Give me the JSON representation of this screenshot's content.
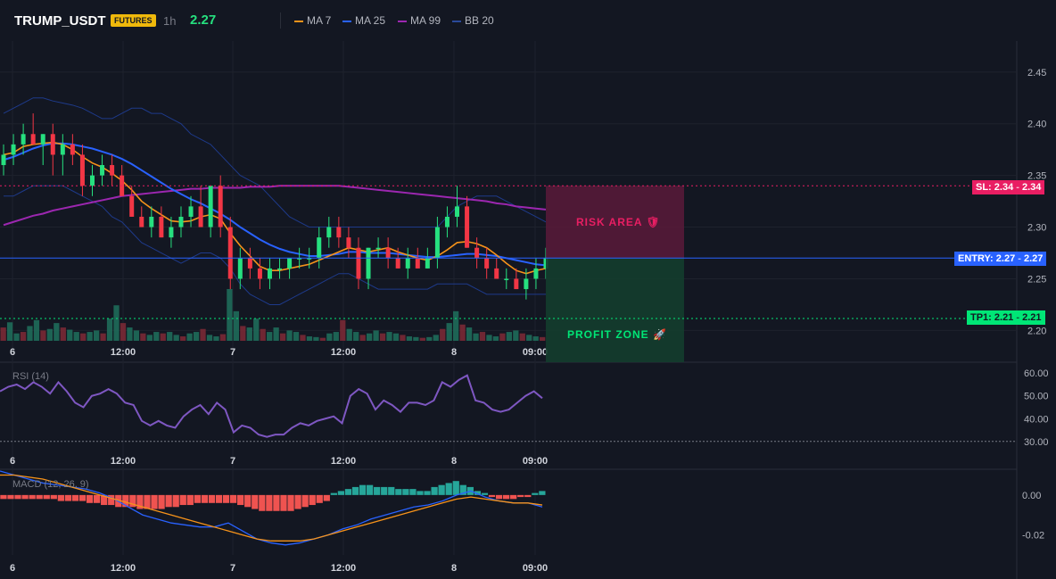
{
  "header": {
    "symbol": "TRUMP_USDT",
    "badge": "FUTURES",
    "timeframe": "1h",
    "last_price": "2.27",
    "legend": [
      {
        "label": "MA 7",
        "color": "#f7931a"
      },
      {
        "label": "MA 25",
        "color": "#2962ff"
      },
      {
        "label": "MA 99",
        "color": "#9c27b0"
      },
      {
        "label": "BB 20",
        "color": "#1e3a8a"
      }
    ]
  },
  "overlays": {
    "risk_area_label": "RISK AREA 🛡",
    "profit_zone_label": "PROFIT ZONE 🚀",
    "sl_label": "SL: 2.34",
    "sl_value": "2.34",
    "entry_label": "ENTRY: 2.27",
    "entry_value": "2.27",
    "tp_label": "TP1: 2.21",
    "tp_value": "2.21"
  },
  "colors": {
    "up": "#26e07f",
    "down": "#f23645",
    "bg": "#131722",
    "grid": "#1e222d",
    "sl": "#e91e63",
    "entry": "#2962ff",
    "tp": "#00e676"
  },
  "time_axis": [
    "6",
    "12:00",
    "7",
    "12:00",
    "8",
    "09:00"
  ],
  "chart_data": [
    {
      "type": "candlestick",
      "name": "price",
      "y_ticks": [
        "2.45",
        "2.40",
        "2.35",
        "2.30",
        "2.25",
        "2.20"
      ],
      "ylim": [
        2.19,
        2.48
      ],
      "candles": [
        [
          2.36,
          2.38,
          2.35,
          2.37
        ],
        [
          2.37,
          2.39,
          2.36,
          2.38
        ],
        [
          2.38,
          2.4,
          2.37,
          2.39
        ],
        [
          2.39,
          2.41,
          2.38,
          2.38
        ],
        [
          2.38,
          2.39,
          2.36,
          2.39
        ],
        [
          2.39,
          2.4,
          2.35,
          2.37
        ],
        [
          2.37,
          2.39,
          2.35,
          2.38
        ],
        [
          2.38,
          2.39,
          2.36,
          2.37
        ],
        [
          2.37,
          2.38,
          2.33,
          2.34
        ],
        [
          2.34,
          2.36,
          2.33,
          2.35
        ],
        [
          2.35,
          2.37,
          2.34,
          2.36
        ],
        [
          2.36,
          2.37,
          2.34,
          2.35
        ],
        [
          2.35,
          2.36,
          2.33,
          2.33
        ],
        [
          2.33,
          2.34,
          2.31,
          2.31
        ],
        [
          2.31,
          2.32,
          2.3,
          2.3
        ],
        [
          2.3,
          2.32,
          2.29,
          2.31
        ],
        [
          2.31,
          2.32,
          2.29,
          2.29
        ],
        [
          2.29,
          2.31,
          2.28,
          2.3
        ],
        [
          2.3,
          2.32,
          2.29,
          2.31
        ],
        [
          2.31,
          2.33,
          2.3,
          2.32
        ],
        [
          2.32,
          2.34,
          2.3,
          2.3
        ],
        [
          2.3,
          2.34,
          2.29,
          2.34
        ],
        [
          2.34,
          2.35,
          2.29,
          2.3
        ],
        [
          2.3,
          2.31,
          2.24,
          2.25
        ],
        [
          2.25,
          2.28,
          2.24,
          2.27
        ],
        [
          2.27,
          2.28,
          2.25,
          2.26
        ],
        [
          2.26,
          2.27,
          2.24,
          2.25
        ],
        [
          2.25,
          2.27,
          2.24,
          2.26
        ],
        [
          2.26,
          2.27,
          2.25,
          2.26
        ],
        [
          2.26,
          2.27,
          2.25,
          2.27
        ],
        [
          2.27,
          2.28,
          2.26,
          2.27
        ],
        [
          2.27,
          2.28,
          2.26,
          2.27
        ],
        [
          2.27,
          2.3,
          2.26,
          2.29
        ],
        [
          2.29,
          2.31,
          2.28,
          2.3
        ],
        [
          2.3,
          2.31,
          2.28,
          2.29
        ],
        [
          2.29,
          2.3,
          2.27,
          2.28
        ],
        [
          2.28,
          2.29,
          2.24,
          2.25
        ],
        [
          2.25,
          2.28,
          2.24,
          2.28
        ],
        [
          2.28,
          2.29,
          2.27,
          2.28
        ],
        [
          2.28,
          2.29,
          2.26,
          2.27
        ],
        [
          2.27,
          2.28,
          2.26,
          2.26
        ],
        [
          2.26,
          2.28,
          2.25,
          2.27
        ],
        [
          2.27,
          2.28,
          2.26,
          2.26
        ],
        [
          2.26,
          2.28,
          2.26,
          2.27
        ],
        [
          2.27,
          2.31,
          2.26,
          2.3
        ],
        [
          2.3,
          2.32,
          2.29,
          2.31
        ],
        [
          2.31,
          2.34,
          2.3,
          2.32
        ],
        [
          2.32,
          2.33,
          2.28,
          2.28
        ],
        [
          2.28,
          2.29,
          2.26,
          2.27
        ],
        [
          2.27,
          2.28,
          2.25,
          2.26
        ],
        [
          2.26,
          2.27,
          2.25,
          2.25
        ],
        [
          2.25,
          2.26,
          2.24,
          2.25
        ],
        [
          2.25,
          2.26,
          2.24,
          2.24
        ],
        [
          2.24,
          2.26,
          2.23,
          2.25
        ],
        [
          2.25,
          2.27,
          2.24,
          2.26
        ],
        [
          2.26,
          2.28,
          2.25,
          2.27
        ]
      ],
      "volume": [
        18,
        25,
        10,
        12,
        20,
        28,
        14,
        16,
        24,
        18,
        15,
        12,
        10,
        12,
        14,
        10,
        30,
        48,
        24,
        18,
        14,
        10,
        8,
        12,
        10,
        12,
        8,
        6,
        10,
        12,
        16,
        8,
        6,
        9,
        70,
        40,
        20,
        18,
        30,
        16,
        12,
        18,
        10,
        14,
        12,
        8,
        6,
        5,
        4,
        10,
        12,
        28,
        16,
        12,
        8,
        10,
        14,
        10,
        12,
        10,
        8,
        6,
        5,
        4,
        5,
        8,
        16,
        24,
        40,
        22,
        18,
        10,
        12,
        8,
        6,
        10,
        12,
        14,
        10,
        8,
        6,
        5
      ],
      "ma7": [
        2.37,
        2.372,
        2.378,
        2.38,
        2.381,
        2.382,
        2.38,
        2.375,
        2.368,
        2.362,
        2.358,
        2.352,
        2.345,
        2.336,
        2.325,
        2.318,
        2.312,
        2.306,
        2.305,
        2.306,
        2.31,
        2.312,
        2.308,
        2.294,
        2.282,
        2.272,
        2.262,
        2.258,
        2.258,
        2.26,
        2.262,
        2.264,
        2.268,
        2.272,
        2.276,
        2.28,
        2.278,
        2.276,
        2.278,
        2.28,
        2.276,
        2.273,
        2.27,
        2.268,
        2.272,
        2.278,
        2.285,
        2.286,
        2.284,
        2.28,
        2.273,
        2.265,
        2.258,
        2.255,
        2.258,
        2.26
      ],
      "ma25": [
        2.365,
        2.368,
        2.372,
        2.376,
        2.379,
        2.381,
        2.381,
        2.38,
        2.378,
        2.376,
        2.373,
        2.37,
        2.366,
        2.361,
        2.355,
        2.349,
        2.343,
        2.337,
        2.332,
        2.327,
        2.323,
        2.318,
        2.313,
        2.307,
        2.3,
        2.294,
        2.288,
        2.283,
        2.279,
        2.276,
        2.274,
        2.272,
        2.272,
        2.273,
        2.274,
        2.276,
        2.276,
        2.275,
        2.275,
        2.275,
        2.274,
        2.273,
        2.272,
        2.271,
        2.271,
        2.272,
        2.273,
        2.274,
        2.274,
        2.273,
        2.272,
        2.27,
        2.268,
        2.266,
        2.264,
        2.263
      ],
      "ma99": [
        2.302,
        2.305,
        2.308,
        2.311,
        2.313,
        2.316,
        2.318,
        2.32,
        2.322,
        2.324,
        2.326,
        2.328,
        2.33,
        2.331,
        2.332,
        2.333,
        2.334,
        2.335,
        2.336,
        2.337,
        2.337,
        2.338,
        2.338,
        2.338,
        2.338,
        2.339,
        2.339,
        2.339,
        2.34,
        2.34,
        2.34,
        2.34,
        2.34,
        2.34,
        2.34,
        2.339,
        2.338,
        2.337,
        2.336,
        2.335,
        2.334,
        2.333,
        2.332,
        2.331,
        2.33,
        2.329,
        2.328,
        2.327,
        2.326,
        2.325,
        2.323,
        2.322,
        2.32,
        2.319,
        2.318,
        2.317
      ],
      "bb_upper": [
        2.41,
        2.415,
        2.42,
        2.425,
        2.425,
        2.422,
        2.42,
        2.418,
        2.415,
        2.41,
        2.405,
        2.405,
        2.41,
        2.415,
        2.415,
        2.41,
        2.41,
        2.405,
        2.4,
        2.39,
        2.385,
        2.38,
        2.37,
        2.36,
        2.35,
        2.345,
        2.34,
        2.33,
        2.32,
        2.31,
        2.305,
        2.3,
        2.3,
        2.3,
        2.3,
        2.3,
        2.3,
        2.3,
        2.3,
        2.3,
        2.3,
        2.3,
        2.3,
        2.3,
        2.3,
        2.31,
        2.32,
        2.325,
        2.33,
        2.33,
        2.33,
        2.325,
        2.32,
        2.315,
        2.31,
        2.305
      ],
      "bb_lower": [
        2.33,
        2.33,
        2.335,
        2.34,
        2.34,
        2.34,
        2.34,
        2.335,
        2.33,
        2.325,
        2.32,
        2.31,
        2.305,
        2.295,
        2.285,
        2.28,
        2.275,
        2.27,
        2.265,
        2.27,
        2.275,
        2.275,
        2.27,
        2.26,
        2.245,
        2.235,
        2.23,
        2.225,
        2.225,
        2.23,
        2.235,
        2.24,
        2.245,
        2.25,
        2.255,
        2.255,
        2.25,
        2.245,
        2.24,
        2.24,
        2.24,
        2.24,
        2.24,
        2.24,
        2.245,
        2.245,
        2.245,
        2.245,
        2.24,
        2.235,
        2.235,
        2.235,
        2.235,
        2.235,
        2.235,
        2.235
      ]
    },
    {
      "type": "line",
      "name": "RSI (14)",
      "y_ticks": [
        "60.00",
        "50.00",
        "40.00",
        "30.00"
      ],
      "ylim": [
        26,
        64
      ],
      "reference_level": 30,
      "values": [
        52,
        54,
        55,
        53,
        56,
        54,
        51,
        56,
        52,
        47,
        45,
        50,
        51,
        53,
        51,
        47,
        46,
        39,
        37,
        39,
        37,
        36,
        41,
        44,
        46,
        42,
        47,
        44,
        34,
        37,
        36,
        33,
        32,
        33,
        33,
        36,
        38,
        37,
        39,
        40,
        41,
        38,
        50,
        53,
        51,
        44,
        48,
        46,
        43,
        47,
        47,
        46,
        48,
        56,
        54,
        57,
        59,
        48,
        47,
        44,
        43,
        44,
        47,
        50,
        52,
        49
      ]
    },
    {
      "type": "bar+line",
      "name": "MACD (12, 26, 9)",
      "y_ticks": [
        "0.00",
        "-0.02"
      ],
      "ylim": [
        -0.03,
        0.012
      ],
      "histogram": [
        -0.002,
        -0.002,
        -0.002,
        -0.002,
        -0.002,
        -0.002,
        -0.002,
        -0.002,
        -0.003,
        -0.003,
        -0.003,
        -0.003,
        -0.004,
        -0.004,
        -0.005,
        -0.005,
        -0.006,
        -0.006,
        -0.006,
        -0.007,
        -0.007,
        -0.007,
        -0.007,
        -0.006,
        -0.006,
        -0.005,
        -0.005,
        -0.004,
        -0.004,
        -0.004,
        -0.004,
        -0.004,
        -0.004,
        -0.005,
        -0.006,
        -0.007,
        -0.008,
        -0.008,
        -0.008,
        -0.008,
        -0.008,
        -0.007,
        -0.006,
        -0.005,
        -0.004,
        -0.003,
        0.001,
        0.002,
        0.003,
        0.004,
        0.005,
        0.005,
        0.004,
        0.004,
        0.004,
        0.003,
        0.003,
        0.003,
        0.002,
        0.002,
        0.004,
        0.005,
        0.006,
        0.007,
        0.005,
        0.004,
        0.002,
        0.001,
        -0.001,
        -0.002,
        -0.002,
        -0.002,
        -0.001,
        -0.001,
        0.001,
        0.002
      ],
      "macd": [
        0.012,
        0.01,
        0.008,
        0.006,
        0.005,
        0.004,
        0.003,
        0.001,
        -0.002,
        -0.006,
        -0.01,
        -0.012,
        -0.014,
        -0.015,
        -0.016,
        -0.016,
        -0.014,
        -0.018,
        -0.022,
        -0.024,
        -0.025,
        -0.024,
        -0.022,
        -0.02,
        -0.017,
        -0.015,
        -0.012,
        -0.01,
        -0.008,
        -0.006,
        -0.005,
        -0.003,
        0.0,
        0.002,
        -0.001,
        -0.003,
        -0.004,
        -0.004,
        -0.006
      ],
      "signal": [
        0.01,
        0.01,
        0.009,
        0.008,
        0.006,
        0.004,
        0.002,
        0.0,
        -0.002,
        -0.004,
        -0.006,
        -0.008,
        -0.01,
        -0.012,
        -0.014,
        -0.016,
        -0.018,
        -0.02,
        -0.022,
        -0.023,
        -0.023,
        -0.023,
        -0.022,
        -0.02,
        -0.018,
        -0.016,
        -0.014,
        -0.012,
        -0.01,
        -0.008,
        -0.006,
        -0.004,
        -0.002,
        -0.001,
        -0.002,
        -0.003,
        -0.004,
        -0.004,
        -0.005
      ]
    }
  ]
}
